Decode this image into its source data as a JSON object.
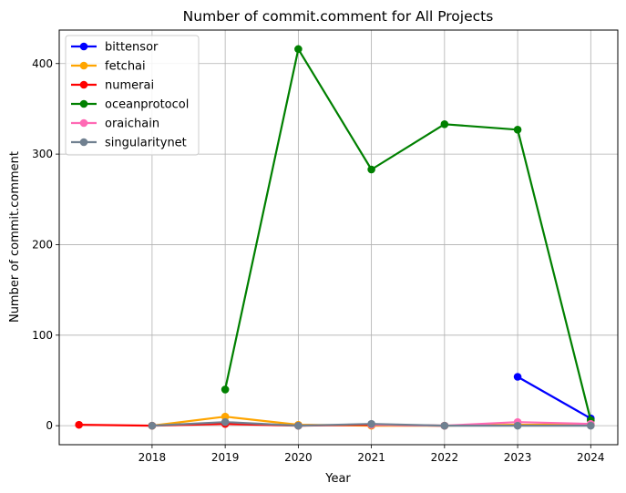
{
  "chart_data": {
    "type": "line",
    "title": "Number of commit.comment for All Projects",
    "xlabel": "Year",
    "ylabel": "Number of commit.comment",
    "x_ticks": [
      "2018",
      "2019",
      "2020",
      "2021",
      "2022",
      "2023",
      "2024"
    ],
    "y_ticks": [
      "0",
      "100",
      "200",
      "300",
      "400"
    ],
    "xlim": [
      2016.73,
      2024.37
    ],
    "ylim": [
      -21,
      437
    ],
    "grid": true,
    "legend_position": "top-left",
    "series": [
      {
        "name": "bittensor",
        "color": "#0000ff",
        "points": [
          [
            2023,
            54
          ],
          [
            2024,
            8
          ]
        ]
      },
      {
        "name": "fetchai",
        "color": "#ffa500",
        "points": [
          [
            2018,
            0
          ],
          [
            2019,
            10
          ],
          [
            2020,
            1
          ],
          [
            2021,
            0
          ],
          [
            2022,
            0
          ],
          [
            2023,
            1
          ],
          [
            2024,
            1
          ]
        ]
      },
      {
        "name": "numerai",
        "color": "#ff0000",
        "points": [
          [
            2017,
            1
          ],
          [
            2018,
            0
          ],
          [
            2019,
            2
          ],
          [
            2020,
            0
          ],
          [
            2021,
            1
          ],
          [
            2022,
            0
          ]
        ]
      },
      {
        "name": "oceanprotocol",
        "color": "#008000",
        "points": [
          [
            2019,
            40
          ],
          [
            2020,
            416
          ],
          [
            2021,
            283
          ],
          [
            2022,
            333
          ],
          [
            2023,
            327
          ],
          [
            2024,
            6
          ]
        ]
      },
      {
        "name": "oraichain",
        "color": "#ff69b4",
        "points": [
          [
            2021,
            1
          ],
          [
            2022,
            0
          ],
          [
            2023,
            4
          ],
          [
            2024,
            2
          ]
        ]
      },
      {
        "name": "singularitynet",
        "color": "#708090",
        "points": [
          [
            2018,
            0
          ],
          [
            2019,
            4
          ],
          [
            2020,
            0
          ],
          [
            2021,
            2
          ],
          [
            2022,
            0
          ],
          [
            2023,
            0
          ],
          [
            2024,
            0
          ]
        ]
      }
    ]
  }
}
